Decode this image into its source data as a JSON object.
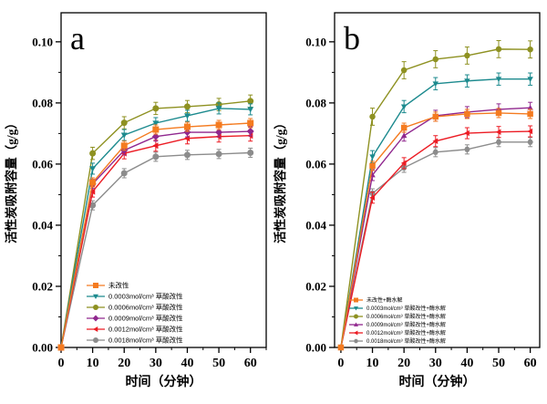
{
  "figure": {
    "background": "#ffffff",
    "axis_color": "#000000"
  },
  "chart_data": [
    {
      "type": "line",
      "panel_label": "a",
      "xlabel": "时间（分钟）",
      "ylabel": "活性炭吸附容量（g/g）",
      "xlim": [
        0,
        65
      ],
      "ylim": [
        0,
        0.1095
      ],
      "x_ticks": [
        0,
        10,
        20,
        30,
        40,
        50,
        60
      ],
      "y_ticks": [
        0.0,
        0.02,
        0.04,
        0.06,
        0.08,
        0.1
      ],
      "x_minor_step": 5,
      "y_minor_step": 0.01,
      "grid": false,
      "legend_position": "lower left inside",
      "x": [
        0,
        10,
        20,
        30,
        40,
        50,
        60
      ],
      "series": [
        {
          "name": "未改性",
          "color": "#F47B20",
          "marker": "square",
          "err": 0.0015,
          "values": [
            0,
            0.054,
            0.066,
            0.0713,
            0.0722,
            0.0728,
            0.0734
          ]
        },
        {
          "name": "0.0003mol/cm³ 草酸改性",
          "color": "#1C8A8E",
          "marker": "triangle-down",
          "err": 0.0018,
          "values": [
            0,
            0.0585,
            0.0695,
            0.0734,
            0.0758,
            0.0782,
            0.0779
          ]
        },
        {
          "name": "0.0006mol/cm³ 草酸改性",
          "color": "#8E9121",
          "marker": "circle",
          "err": 0.002,
          "values": [
            0,
            0.0635,
            0.0735,
            0.0782,
            0.0788,
            0.0795,
            0.0806
          ]
        },
        {
          "name": "0.0009mol/cm³ 草酸改性",
          "color": "#90278E",
          "marker": "diamond",
          "err": 0.0015,
          "values": [
            0,
            0.0535,
            0.0645,
            0.069,
            0.0704,
            0.0704,
            0.0707
          ]
        },
        {
          "name": "0.0012mol/cm³ 草酸改性",
          "color": "#EC1C24",
          "marker": "triangle-left",
          "err": 0.0018,
          "values": [
            0,
            0.051,
            0.0635,
            0.066,
            0.0684,
            0.069,
            0.0693
          ]
        },
        {
          "name": "0.0018mol/cm³ 草酸改性",
          "color": "#8C8C8C",
          "marker": "circle",
          "err": 0.0015,
          "values": [
            0,
            0.0465,
            0.057,
            0.0624,
            0.063,
            0.0633,
            0.0637
          ]
        }
      ]
    },
    {
      "type": "line",
      "panel_label": "b",
      "xlabel": "时间（分钟）",
      "ylabel": "活性炭吸附容量（g/g）",
      "xlim": [
        -2,
        63
      ],
      "ylim": [
        0,
        0.1095
      ],
      "x_ticks": [
        0,
        10,
        20,
        30,
        40,
        50,
        60
      ],
      "y_ticks": [
        0.0,
        0.02,
        0.04,
        0.06,
        0.08,
        0.1
      ],
      "x_minor_step": 5,
      "y_minor_step": 0.01,
      "grid": false,
      "legend_position": "lower left inside",
      "x": [
        0,
        10,
        20,
        30,
        40,
        50,
        60
      ],
      "series": [
        {
          "name": "未改性+酶水解",
          "color": "#F47B20",
          "marker": "square",
          "err": 0.0015,
          "values": [
            0,
            0.0594,
            0.0719,
            0.0755,
            0.0764,
            0.0767,
            0.0764
          ]
        },
        {
          "name": "0.0003mol/cm³ 草酸改性+酶水解",
          "color": "#1C8A8E",
          "marker": "triangle-down",
          "err": 0.002,
          "values": [
            0,
            0.0624,
            0.0788,
            0.0863,
            0.0872,
            0.0878,
            0.0878
          ]
        },
        {
          "name": "0.0006mol/cm³ 草酸改性+酶水解",
          "color": "#8E9121",
          "marker": "circle",
          "err": 0.0028,
          "values": [
            0,
            0.0755,
            0.0907,
            0.0943,
            0.0955,
            0.0976,
            0.0975
          ]
        },
        {
          "name": "0.0009mol/cm³ 草酸改性+酶水解",
          "color": "#90278E",
          "marker": "triangle-up",
          "err": 0.0018,
          "values": [
            0,
            0.0564,
            0.0693,
            0.0758,
            0.077,
            0.0779,
            0.0784
          ]
        },
        {
          "name": "0.0012mol/cm³ 草酸改性+酶水解",
          "color": "#EC1C24",
          "marker": "triangle-left",
          "err": 0.0018,
          "values": [
            0,
            0.049,
            0.0603,
            0.0675,
            0.0701,
            0.0705,
            0.0707
          ]
        },
        {
          "name": "0.0018mol/cm³ 草酸改性+酶水解",
          "color": "#8C8C8C",
          "marker": "hexagon",
          "err": 0.0015,
          "values": [
            0,
            0.0504,
            0.0588,
            0.0639,
            0.0648,
            0.0672,
            0.0672
          ]
        }
      ]
    }
  ]
}
